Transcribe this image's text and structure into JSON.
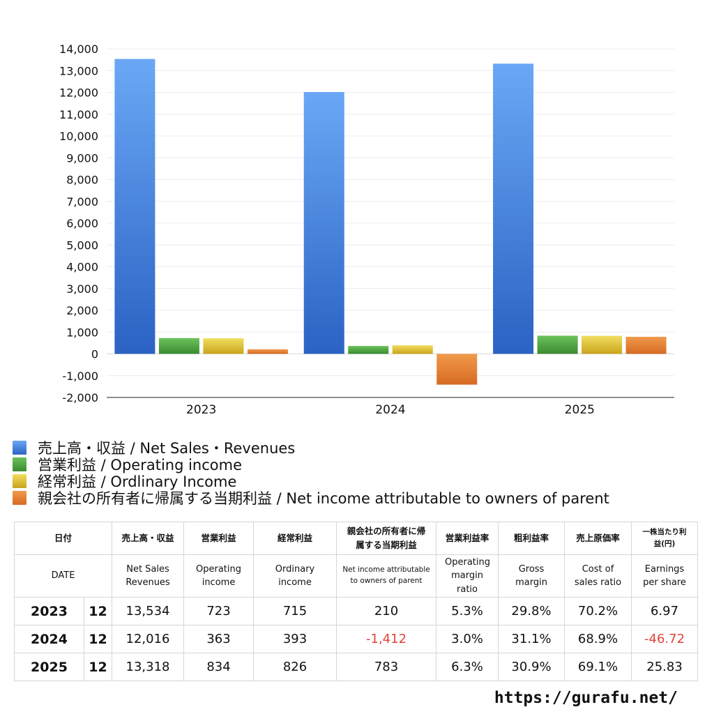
{
  "chart_data": {
    "type": "bar",
    "categories": [
      "2023",
      "2024",
      "2025"
    ],
    "ylim": [
      -2000,
      14000
    ],
    "y_ticks": [
      14000,
      13000,
      12000,
      11000,
      10000,
      9000,
      8000,
      7000,
      6000,
      5000,
      4000,
      3000,
      2000,
      1000,
      0,
      -1000,
      -2000
    ],
    "y_tick_labels": [
      "14,000",
      "13,000",
      "12,000",
      "11,000",
      "10,000",
      "9,000",
      "8,000",
      "7,000",
      "6,000",
      "5,000",
      "4,000",
      "3,000",
      "2,000",
      "1,000",
      "0",
      "-1,000",
      "-2,000"
    ],
    "grid": true,
    "legend_placement": "bottom-left",
    "series": [
      {
        "name": "売上高・収益 / Net Sales・Revenues",
        "values": [
          13534,
          12016,
          13318
        ],
        "color": "#3a7be0",
        "color_light": "#6aa8f5",
        "color_dark": "#2b62c4"
      },
      {
        "name": "営業利益 / Operating income",
        "values": [
          723,
          363,
          834
        ],
        "color": "#4a9e3c",
        "color_light": "#6cc25c",
        "color_dark": "#3a8a30"
      },
      {
        "name": "経常利益 / Ordlinary Income",
        "values": [
          715,
          393,
          826
        ],
        "color": "#d6b830",
        "color_light": "#f1dd5e",
        "color_dark": "#c9a41d"
      },
      {
        "name": "親会社の所有者に帰属する当期利益 / Net income attributable to owners of parent",
        "values": [
          210,
          -1412,
          783
        ],
        "color": "#df7a2c",
        "color_light": "#f19a4c",
        "color_dark": "#d66a22"
      }
    ]
  },
  "table": {
    "header_jp": [
      "日付",
      "売上高・収益",
      "営業利益",
      "経常利益",
      "親会社の所有者に帰属する当期利益",
      "営業利益率",
      "粗利益率",
      "売上原価率",
      "一株当たり利益(円)"
    ],
    "header_en": [
      "DATE",
      "Net Sales Revenues",
      "Operating income",
      "Ordinary income",
      "Net income attributable to owners of parent",
      "Operating margin ratio",
      "Gross margin",
      "Cost of sales ratio",
      "Earnings per share"
    ],
    "rows": [
      {
        "year": "2023",
        "month": "12",
        "net_sales": "13,534",
        "operating_income": "723",
        "ordinary_income": "715",
        "net_income": "210",
        "operating_margin": "5.3%",
        "gross_margin": "29.8%",
        "cost_ratio": "70.2%",
        "eps": "6.97"
      },
      {
        "year": "2024",
        "month": "12",
        "net_sales": "12,016",
        "operating_income": "363",
        "ordinary_income": "393",
        "net_income": "-1,412",
        "operating_margin": "3.0%",
        "gross_margin": "31.1%",
        "cost_ratio": "68.9%",
        "eps": "-46.72"
      },
      {
        "year": "2025",
        "month": "12",
        "net_sales": "13,318",
        "operating_income": "834",
        "ordinary_income": "826",
        "net_income": "783",
        "operating_margin": "6.3%",
        "gross_margin": "30.9%",
        "cost_ratio": "69.1%",
        "eps": "25.83"
      }
    ]
  },
  "footer": {
    "url": "https://gurafu.net/"
  }
}
